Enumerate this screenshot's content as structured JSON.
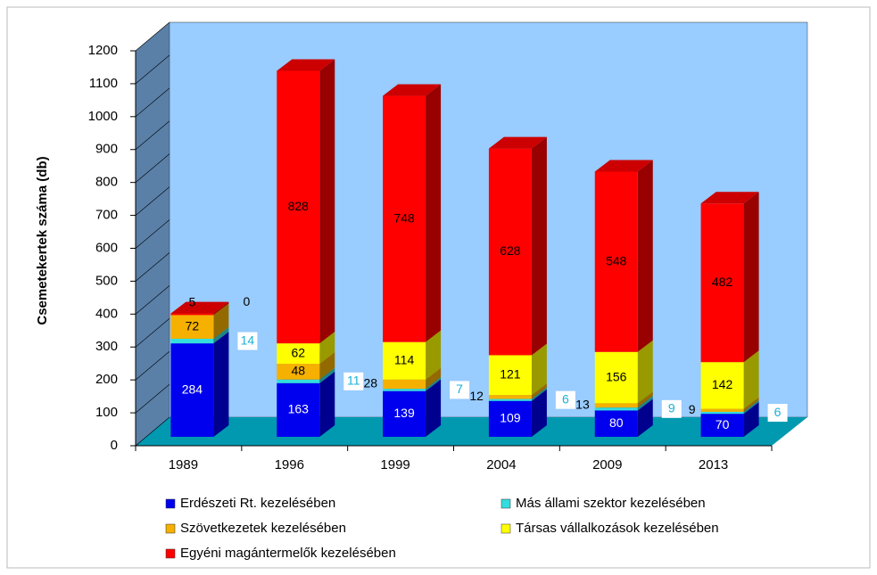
{
  "chart_data": {
    "type": "bar3d-stacked",
    "y_label": "Csemetekertek száma (db)",
    "categories": [
      "1989",
      "1996",
      "1999",
      "2004",
      "2009",
      "2013"
    ],
    "series": [
      {
        "name": "Erdészeti Rt. kezelésében",
        "color": "#0000ee",
        "values": [
          284,
          163,
          139,
          109,
          80,
          70
        ]
      },
      {
        "name": "Más állami szektor kezelésében",
        "color": "#33dddd",
        "values": [
          14,
          11,
          7,
          6,
          9,
          6
        ]
      },
      {
        "name": "Szövetkezetek kezelésében",
        "color": "#f5b000",
        "values": [
          72,
          48,
          28,
          12,
          13,
          9
        ]
      },
      {
        "name": "Társas vállalkozások kezelésében",
        "color": "#ffff00",
        "values": [
          0,
          62,
          114,
          121,
          156,
          142
        ]
      },
      {
        "name": "Egyéni magántermelők kezelésében",
        "color": "#ff0000",
        "values": [
          5,
          828,
          748,
          628,
          548,
          482
        ]
      }
    ],
    "ylim": [
      0,
      1200
    ],
    "yticks": [
      0,
      100,
      200,
      300,
      400,
      500,
      600,
      700,
      800,
      900,
      1000,
      1100,
      1200
    ]
  }
}
